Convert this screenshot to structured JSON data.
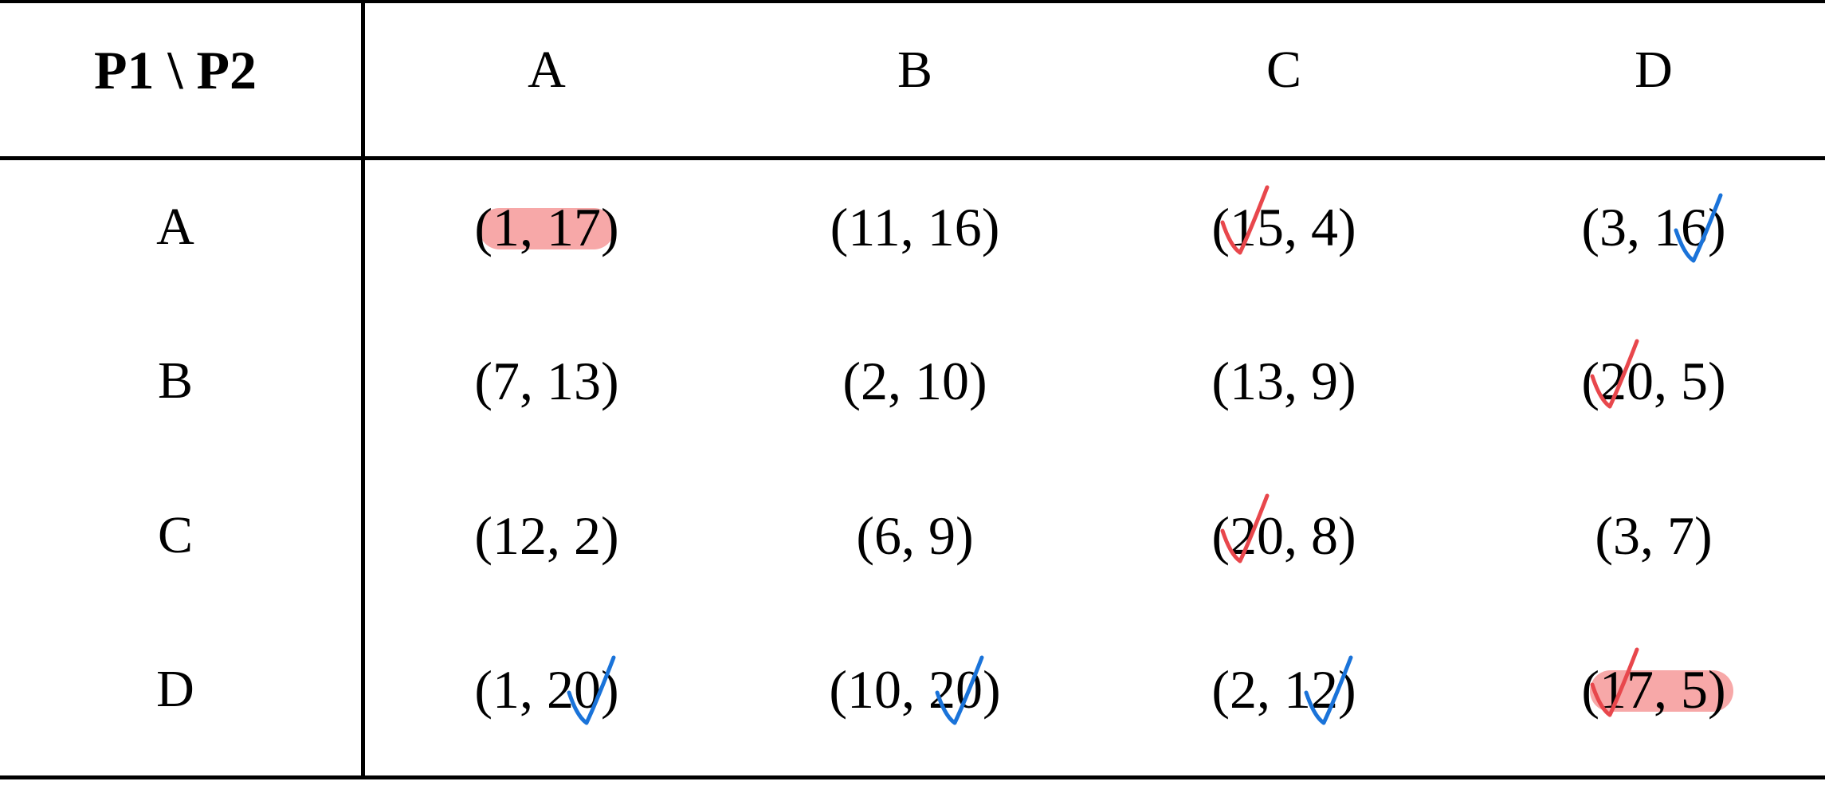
{
  "table": {
    "corner_label": "P1 \\ P2",
    "column_headers": [
      "A",
      "B",
      "C",
      "D"
    ],
    "row_headers": [
      "A",
      "B",
      "C",
      "D"
    ],
    "payoffs": [
      [
        "(1, 17)",
        "(11, 16)",
        "(15, 4)",
        "(3, 16)"
      ],
      [
        "(7, 13)",
        "(2, 10)",
        "(13, 9)",
        "(20, 5)"
      ],
      [
        "(12, 2)",
        "(6, 9)",
        "(20, 8)",
        "(3, 7)"
      ],
      [
        "(1, 20)",
        "(10, 20)",
        "(2, 12)",
        "(17, 5)"
      ]
    ],
    "highlighted_cells": [
      {
        "row": 0,
        "col": 0
      },
      {
        "row": 3,
        "col": 3
      }
    ],
    "red_checks": [
      {
        "row": 0,
        "col": 2
      },
      {
        "row": 1,
        "col": 3
      },
      {
        "row": 2,
        "col": 2
      },
      {
        "row": 3,
        "col": 3
      }
    ],
    "blue_checks": [
      {
        "row": 0,
        "col": 3
      },
      {
        "row": 3,
        "col": 0
      },
      {
        "row": 3,
        "col": 1
      },
      {
        "row": 3,
        "col": 2
      }
    ]
  },
  "colors": {
    "highlight": "#f7a8a8",
    "red_check": "#e8474c",
    "blue_check": "#1a73d9",
    "grid": "#000000"
  }
}
